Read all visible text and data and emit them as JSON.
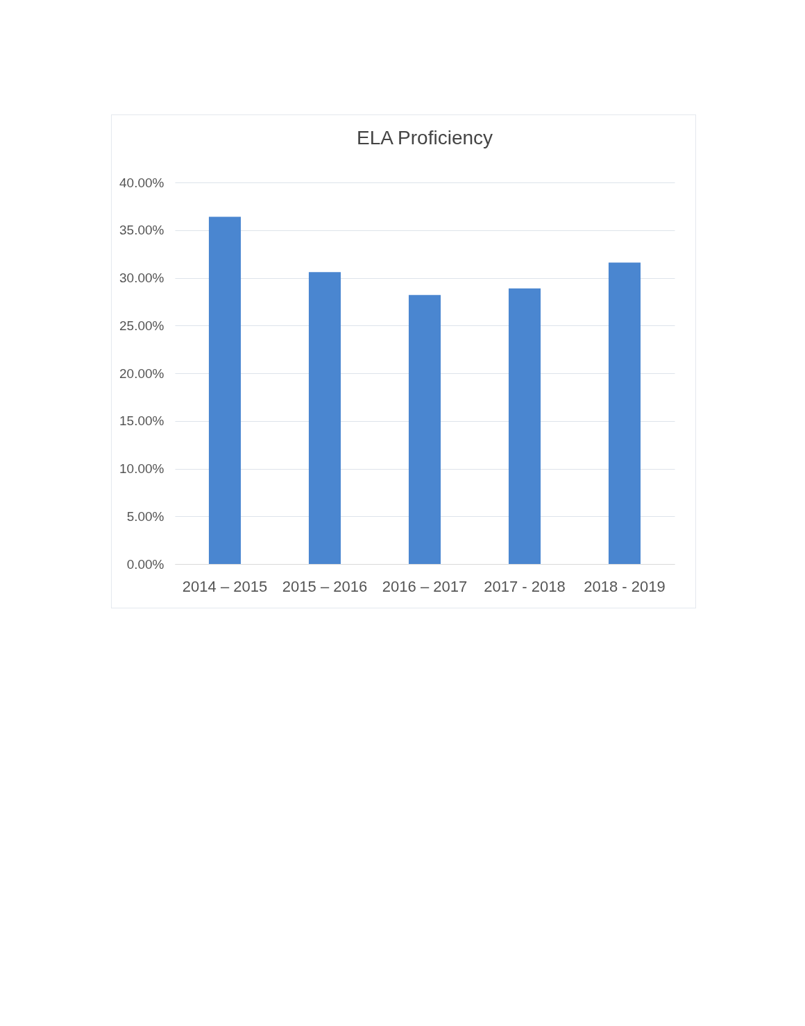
{
  "chart_data": {
    "type": "bar",
    "title": "ELA Proficiency",
    "categories": [
      "2014 – 2015",
      "2015 – 2016",
      "2016 – 2017",
      "2017 - 2018",
      "2018 - 2019"
    ],
    "values": [
      36.4,
      30.6,
      28.2,
      28.9,
      31.6
    ],
    "color": "#4a86d0",
    "ylim": [
      0,
      40
    ],
    "yticks": [
      {
        "value": 0,
        "label": "0.00%"
      },
      {
        "value": 5,
        "label": "5.00%"
      },
      {
        "value": 10,
        "label": "10.00%"
      },
      {
        "value": 15,
        "label": "15.00%"
      },
      {
        "value": 20,
        "label": "20.00%"
      },
      {
        "value": 25,
        "label": "25.00%"
      },
      {
        "value": 30,
        "label": "30.00%"
      },
      {
        "value": 35,
        "label": "35.00%"
      },
      {
        "value": 40,
        "label": "40.00%"
      }
    ],
    "grid": "y"
  }
}
